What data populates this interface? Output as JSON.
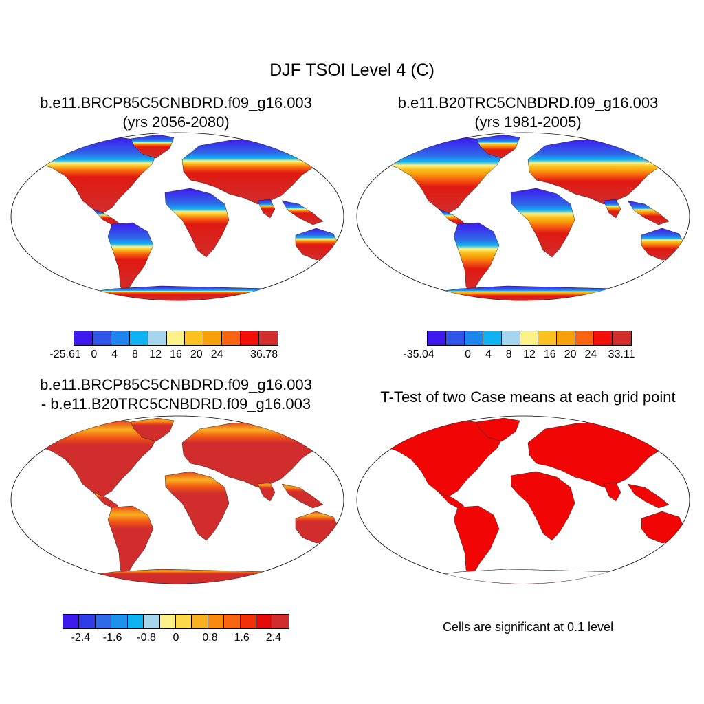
{
  "title": "DJF TSOI Level 4 (C)",
  "panels": [
    {
      "title_line1": "b.e11.BRCP85C5CNBDRD.f09_g16.003",
      "title_line2": "(yrs 2056-2080)",
      "colorbar_labels": [
        "-25.61",
        "0",
        "4",
        "8",
        "12",
        "16",
        "20",
        "24",
        "36.78"
      ],
      "colors": [
        "#3f18f0",
        "#2f55e8",
        "#1e84ee",
        "#10b3f2",
        "#a6d6ee",
        "#fdf28a",
        "#fbc11e",
        "#f7a10a",
        "#f86410",
        "#f20f0a",
        "#d22d2d"
      ]
    },
    {
      "title_line1": "b.e11.B20TRC5CNBDRD.f09_g16.003",
      "title_line2": "(yrs 1981-2005)",
      "colorbar_labels": [
        "-35.04",
        "0",
        "4",
        "8",
        "12",
        "16",
        "20",
        "24",
        "33.11"
      ],
      "colors": [
        "#3f18f0",
        "#2f55e8",
        "#1e84ee",
        "#10b3f2",
        "#a6d6ee",
        "#fdf28a",
        "#fbc11e",
        "#f7a10a",
        "#f86410",
        "#f20f0a",
        "#d22d2d"
      ]
    },
    {
      "title_line1": "b.e11.BRCP85C5CNBDRD.f09_g16.003",
      "title_line2": "- b.e11.B20TRC5CNBDRD.f09_g16.003",
      "colorbar_labels": [
        "-2.4",
        "-1.6",
        "-0.8",
        "0",
        "0.8",
        "1.6",
        "2.4"
      ],
      "colors": [
        "#3f18f0",
        "#2f3ce8",
        "#2f6ae8",
        "#1e90ee",
        "#10b3f2",
        "#a6d6ee",
        "#fdf28a",
        "#fdd84a",
        "#fbb11e",
        "#f88a10",
        "#f86410",
        "#f2300a",
        "#e40a0a",
        "#d22d2d"
      ]
    },
    {
      "title_line1": "T-Test of two Case means at each grid point",
      "note": "Cells are significant at 0.1 level"
    }
  ]
}
